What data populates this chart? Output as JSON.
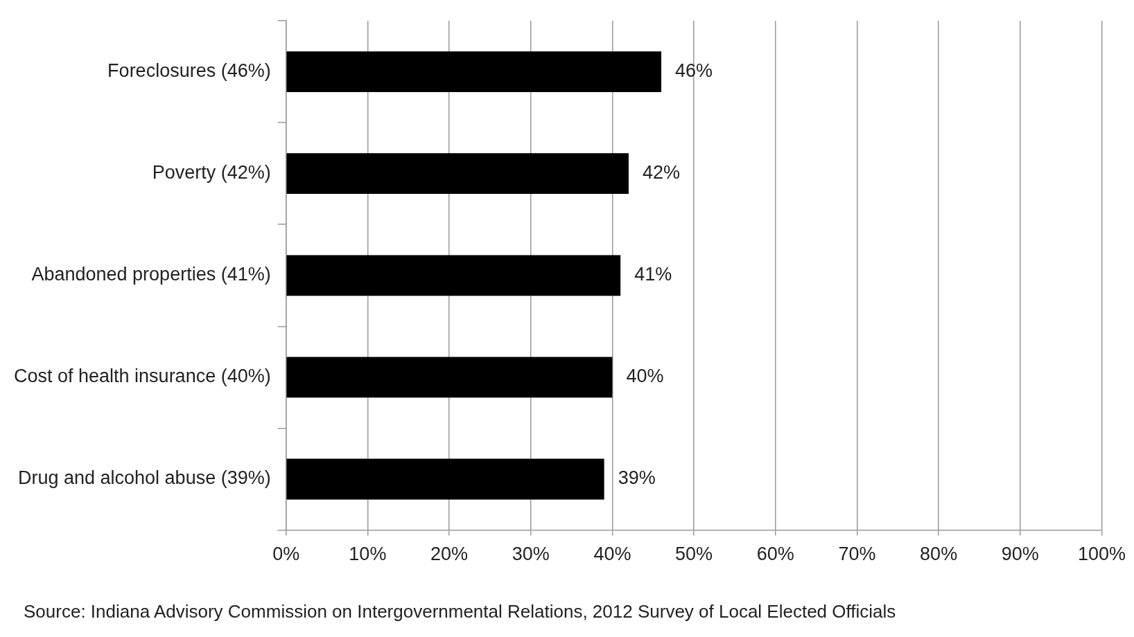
{
  "chart_data": {
    "type": "bar",
    "orientation": "horizontal",
    "categories": [
      "Foreclosures (46%)",
      "Poverty (42%)",
      "Abandoned properties (41%)",
      "Cost of health insurance (40%)",
      "Drug and alcohol abuse (39%)"
    ],
    "values": [
      46,
      42,
      41,
      40,
      39
    ],
    "value_labels": [
      "46%",
      "42%",
      "41%",
      "40%",
      "39%"
    ],
    "color": "#000000",
    "xlim": [
      0,
      100
    ],
    "xticks": [
      {
        "value": 0,
        "label": "0%"
      },
      {
        "value": 10,
        "label": "10%"
      },
      {
        "value": 20,
        "label": "20%"
      },
      {
        "value": 30,
        "label": "30%"
      },
      {
        "value": 40,
        "label": "40%"
      },
      {
        "value": 50,
        "label": "50%"
      },
      {
        "value": 60,
        "label": "60%"
      },
      {
        "value": 70,
        "label": "70%"
      },
      {
        "value": 80,
        "label": "80%"
      },
      {
        "value": 90,
        "label": "90%"
      },
      {
        "value": 100,
        "label": "100%"
      }
    ],
    "grid": "x",
    "annotations": [
      "Source: Indiana Advisory Commission on Intergovernmental Relations, 2012 Survey of Local Elected Officials"
    ]
  }
}
